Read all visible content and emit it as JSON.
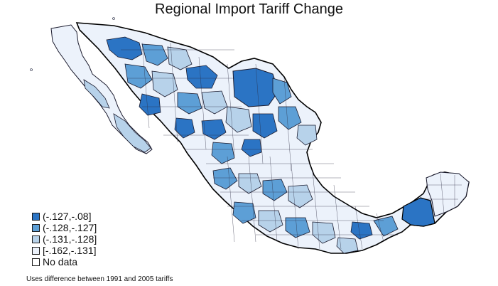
{
  "title": "Regional Import Tariff Change",
  "note": "Uses difference between 1991 and 2005 tariffs",
  "legend": [
    {
      "label": "(-.127,-.08]",
      "color": "#2b74c4"
    },
    {
      "label": "(-.128,-.127]",
      "color": "#5d9fd6"
    },
    {
      "label": "(-.131,-.128]",
      "color": "#b7d2ea"
    },
    {
      "label": "[-.162,-.131]",
      "color": "#ecf2fb"
    },
    {
      "label": "No data",
      "color": "#ffffff"
    }
  ],
  "colors": {
    "border": "#1b1b2e",
    "thick_border": "#000000"
  }
}
